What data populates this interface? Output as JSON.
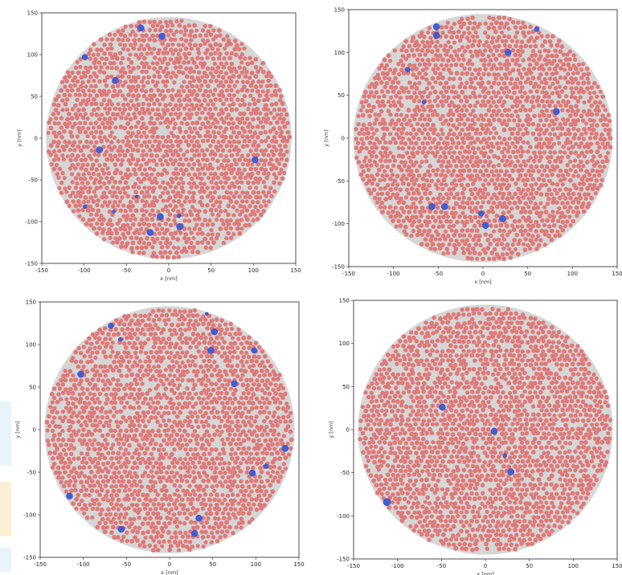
{
  "colors": {
    "particle": "#e07878",
    "highlight": "#3f5fd6",
    "background": "#d6d6d6"
  },
  "chart_data": [
    {
      "type": "scatter",
      "xlabel": "x [nm]",
      "ylabel": "y [nm]",
      "xlim": [
        -150,
        150
      ],
      "ylim": [
        -150,
        150
      ],
      "xticks": [
        "-150",
        "-100",
        "-50",
        "0",
        "50",
        "100",
        "150"
      ],
      "yticks": [
        "-150",
        "-100",
        "-50",
        "0",
        "50",
        "100",
        "150"
      ],
      "region_radius": 145,
      "series": [
        {
          "values": [
            {
              "x": -33,
              "y": 132,
              "r": 4
            },
            {
              "x": -8,
              "y": 122,
              "r": 4
            },
            {
              "x": -99,
              "y": 97,
              "r": 3.5
            },
            {
              "x": -63,
              "y": 69,
              "r": 4
            },
            {
              "x": -82,
              "y": -14,
              "r": 4
            },
            {
              "x": 102,
              "y": -26,
              "r": 4
            },
            {
              "x": -99,
              "y": -82,
              "r": 2.5
            },
            {
              "x": -65,
              "y": -88,
              "r": 2
            },
            {
              "x": -38,
              "y": -70,
              "r": 2
            },
            {
              "x": -10,
              "y": -94,
              "r": 4
            },
            {
              "x": 12,
              "y": -93,
              "r": 2.5
            },
            {
              "x": 13,
              "y": -106,
              "r": 4
            },
            {
              "x": -22,
              "y": -113,
              "r": 4
            }
          ]
        }
      ]
    },
    {
      "type": "scatter",
      "xlabel": "x [nm]",
      "ylabel": "y [nm]",
      "xlim": [
        -150,
        150
      ],
      "ylim": [
        -150,
        150
      ],
      "xticks": [
        "-150",
        "-100",
        "-50",
        "0",
        "50",
        "100",
        "150"
      ],
      "yticks": [
        "-150",
        "-100",
        "-50",
        "0",
        "50",
        "100",
        "150"
      ],
      "region_radius": 145,
      "series": [
        {
          "values": [
            {
              "x": -52,
              "y": 130,
              "r": 4
            },
            {
              "x": -52,
              "y": 120,
              "r": 4
            },
            {
              "x": 60,
              "y": 127,
              "r": 3
            },
            {
              "x": 28,
              "y": 100,
              "r": 4
            },
            {
              "x": -84,
              "y": 80,
              "r": 3
            },
            {
              "x": -66,
              "y": 42,
              "r": 2.5
            },
            {
              "x": 82,
              "y": 31,
              "r": 4
            },
            {
              "x": -57,
              "y": -80,
              "r": 4
            },
            {
              "x": -43,
              "y": -80,
              "r": 4
            },
            {
              "x": -2,
              "y": -88,
              "r": 3.5
            },
            {
              "x": 3,
              "y": -102,
              "r": 4
            },
            {
              "x": 22,
              "y": -94,
              "r": 4
            }
          ]
        }
      ]
    },
    {
      "type": "scatter",
      "xlabel": "x [nm]",
      "ylabel": "y [nm]",
      "xlim": [
        -150,
        150
      ],
      "ylim": [
        -150,
        150
      ],
      "xticks": [
        "-150",
        "-100",
        "-50",
        "0",
        "50",
        "100",
        "150"
      ],
      "yticks": [
        "-150",
        "-100",
        "-50",
        "0",
        "50",
        "100",
        "150"
      ],
      "region_radius": 145,
      "series": [
        {
          "values": [
            {
              "x": -68,
              "y": 122,
              "r": 3.5
            },
            {
              "x": -57,
              "y": 106,
              "r": 2.5
            },
            {
              "x": 43,
              "y": 136,
              "r": 2
            },
            {
              "x": 52,
              "y": 115,
              "r": 4
            },
            {
              "x": 48,
              "y": 93,
              "r": 4
            },
            {
              "x": 98,
              "y": 93,
              "r": 3.5
            },
            {
              "x": -103,
              "y": 65,
              "r": 4
            },
            {
              "x": 75,
              "y": 54,
              "r": 4
            },
            {
              "x": 134,
              "y": -22,
              "r": 4
            },
            {
              "x": 112,
              "y": -43,
              "r": 3
            },
            {
              "x": 96,
              "y": -51,
              "r": 4
            },
            {
              "x": -116,
              "y": -78,
              "r": 4
            },
            {
              "x": -56,
              "y": -117,
              "r": 4
            },
            {
              "x": 34,
              "y": -104,
              "r": 4
            },
            {
              "x": 29,
              "y": -122,
              "r": 4
            }
          ]
        }
      ]
    },
    {
      "type": "scatter",
      "xlabel": "x [nm]",
      "ylabel": "y [nm]",
      "xlim": [
        -150,
        150
      ],
      "ylim": [
        -150,
        150
      ],
      "xticks": [
        "-150",
        "-100",
        "-50",
        "0",
        "50",
        "100",
        "150"
      ],
      "yticks": [
        "-150",
        "-100",
        "-50",
        "0",
        "50",
        "100",
        "150"
      ],
      "region_radius": 145,
      "series": [
        {
          "values": [
            {
              "x": -49,
              "y": 26,
              "r": 4
            },
            {
              "x": 10,
              "y": -2,
              "r": 4
            },
            {
              "x": 22,
              "y": -30,
              "r": 2.5
            },
            {
              "x": 29,
              "y": -49,
              "r": 4
            },
            {
              "x": -112,
              "y": -84,
              "r": 4.5
            }
          ]
        }
      ]
    }
  ]
}
